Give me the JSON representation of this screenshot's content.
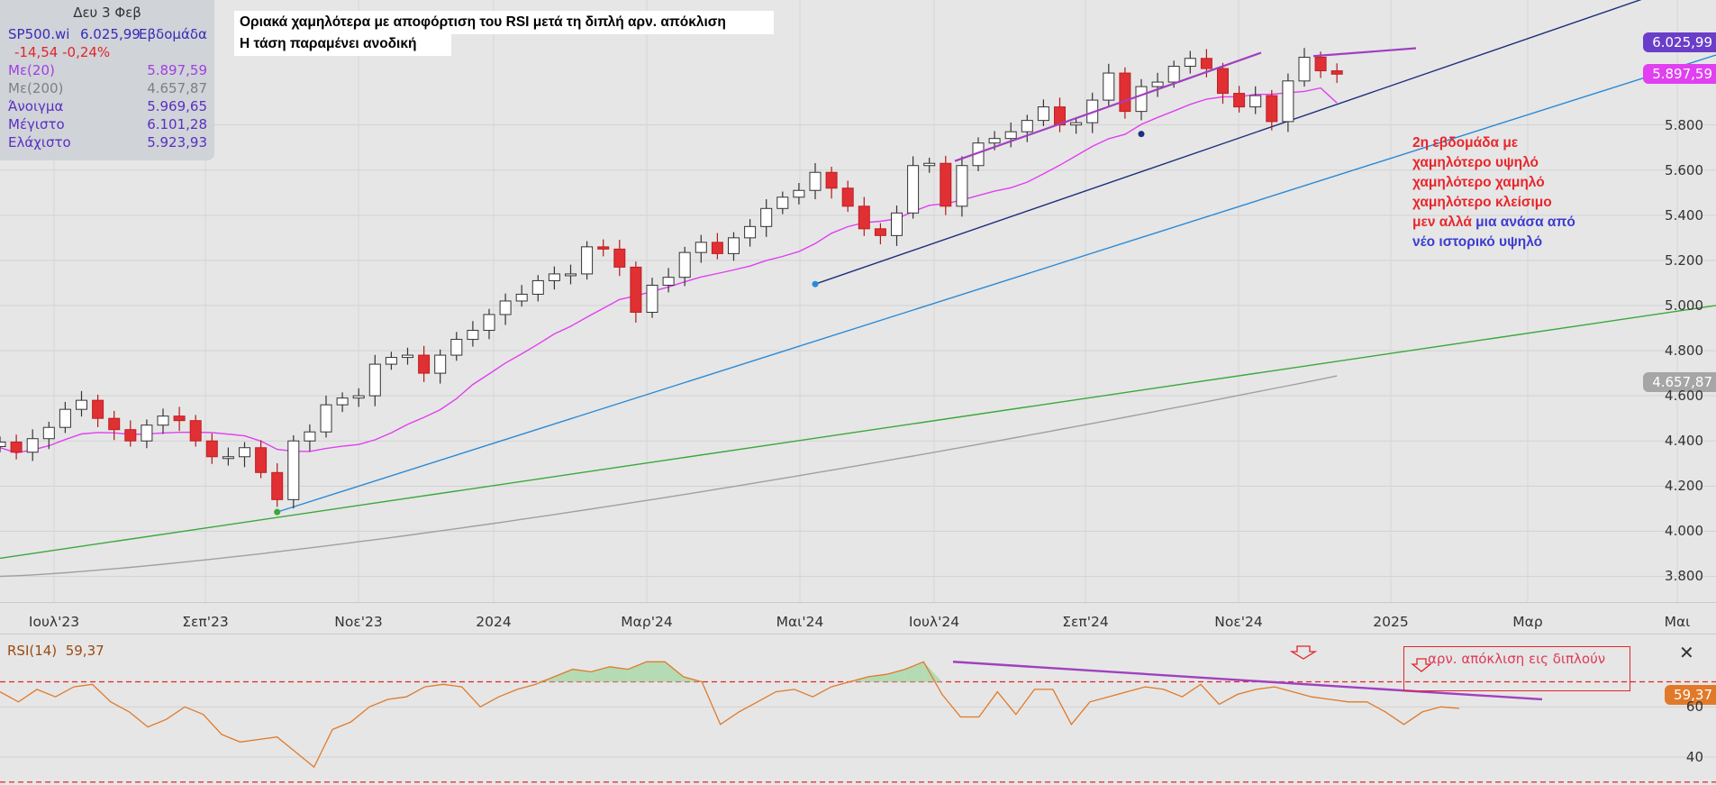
{
  "info": {
    "date": "Δευ 3 Φεβ",
    "symbol": "SP500.wi",
    "last": "6.025,99",
    "timeframe": "Εβδομάδα",
    "change": "-14,54 -0,24%",
    "rows": [
      {
        "label": "Με(20)",
        "value": "5.897,59",
        "color": "#a040e0"
      },
      {
        "label": "Με(200)",
        "value": "4.657,87",
        "color": "#808080"
      },
      {
        "label": "Άνοιγμα",
        "value": "5.969,65",
        "color": "#5a2fc2"
      },
      {
        "label": "Μέγιστο",
        "value": "6.101,28",
        "color": "#5a2fc2"
      },
      {
        "label": "Ελάχιστο",
        "value": "5.923,93",
        "color": "#5a2fc2"
      }
    ]
  },
  "notes": {
    "line1": "Οριακά χαμηλότερα με αποφόρτιση του RSI μετά τη διπλή αρν. απόκλιση",
    "line2": "Η τάση παραμένει ανοδική"
  },
  "annotation": {
    "red_lines": [
      "2η εβδομάδα με",
      "χαμηλότερο υψηλό",
      "χαμηλότερο χαμηλό",
      "χαμηλότερο κλείσιμο"
    ],
    "mixed_red": "μεν αλλά",
    "mixed_blue": " μια ανάσα από",
    "blue_line": "νέο ιστορικό υψηλό",
    "red_color": "#e8262c",
    "blue_color": "#3c3cd0"
  },
  "rsi_note": "αρν. απόκλιση εις διπλούν",
  "price_tags": {
    "last": "6.025,99",
    "ma20": "5.897,59",
    "ma200": "4.657,87"
  },
  "colors": {
    "up": "#ffffff",
    "down": "#e03033",
    "ma20": "#e040f0",
    "ma200": "#a0a0a0",
    "trend_blue": "#2a8ad6",
    "trend_navy": "#1d2f7a",
    "trend_green": "#3aa83a",
    "divergence": "#a040c0",
    "rsi": "#e07a2a"
  },
  "chart_data": [
    {
      "type": "candlestick",
      "timeframe": "weekly",
      "x_labels": [
        "Ιουλ'23",
        "Σεπ'23",
        "Νοε'23",
        "2024",
        "Μαρ'24",
        "Μαι'24",
        "Ιουλ'24",
        "Σεπ'24",
        "Νοε'24",
        "2025",
        "Μαρ",
        "Μαι"
      ],
      "ylim": [
        3750,
        6150
      ],
      "yticks": [
        "3.800",
        "4.000",
        "4.200",
        "4.400",
        "4.600",
        "4.800",
        "5.000",
        "5.200",
        "5.400",
        "5.600",
        "5.800"
      ],
      "series_close": [
        4395,
        4350,
        4410,
        4460,
        4540,
        4580,
        4500,
        4450,
        4400,
        4470,
        4510,
        4490,
        4400,
        4330,
        4330,
        4370,
        4260,
        4140,
        4400,
        4440,
        4560,
        4590,
        4600,
        4740,
        4770,
        4780,
        4700,
        4780,
        4850,
        4890,
        4960,
        5020,
        5050,
        5110,
        5140,
        5140,
        5260,
        5250,
        5170,
        4970,
        5090,
        5125,
        5235,
        5280,
        5230,
        5300,
        5350,
        5430,
        5480,
        5510,
        5590,
        5520,
        5440,
        5340,
        5310,
        5410,
        5620,
        5630,
        5440,
        5620,
        5720,
        5740,
        5770,
        5820,
        5880,
        5800,
        5810,
        5910,
        6030,
        5860,
        5970,
        5990,
        6060,
        6095,
        6050,
        5940,
        5880,
        5930,
        5815,
        5995,
        6100,
        6040,
        6025
      ],
      "ma20_end": 5897.59,
      "ma200_end": 4657.87,
      "last_close": 6025.99
    },
    {
      "type": "line",
      "name": "RSI(14)",
      "value_label": "59,37",
      "ylim": [
        31,
        86
      ],
      "yticks": [
        40,
        60
      ],
      "overbought": 70,
      "oversold": 30,
      "values": [
        66,
        62,
        67,
        64,
        68,
        69,
        62,
        58,
        52,
        55,
        60,
        57,
        49,
        46,
        47,
        48,
        42,
        36,
        51,
        54,
        60,
        63,
        64,
        68,
        69,
        68,
        60,
        64,
        67,
        69,
        72,
        75,
        74,
        76,
        75,
        78,
        78,
        72,
        70,
        53,
        58,
        62,
        66,
        67,
        64,
        68,
        70,
        72,
        73,
        75,
        78,
        65,
        56,
        56,
        66,
        57,
        67,
        67,
        53,
        62,
        64,
        66,
        68,
        67,
        64,
        69,
        61,
        65,
        67,
        68,
        66,
        64,
        63,
        62,
        62,
        58,
        53,
        58,
        60,
        59.4
      ]
    }
  ]
}
